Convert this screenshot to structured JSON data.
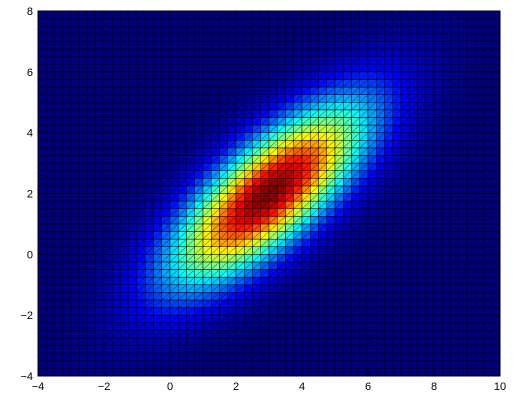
{
  "chart_data": {
    "type": "heatmap",
    "title": "",
    "xlabel": "",
    "ylabel": "",
    "xlim": [
      -4,
      10
    ],
    "ylim": [
      -4,
      8
    ],
    "x_ticks": [
      -4,
      -2,
      0,
      2,
      4,
      6,
      8,
      10
    ],
    "y_ticks": [
      -4,
      -2,
      0,
      2,
      4,
      6,
      8
    ],
    "x_tick_labels": [
      "−4",
      "−2",
      "0",
      "2",
      "4",
      "6",
      "8",
      "10"
    ],
    "y_tick_labels": [
      "−4",
      "−2",
      "0",
      "2",
      "4",
      "6",
      "8"
    ],
    "grid_spacing": 0.25,
    "surface": {
      "kind": "bivariate-gaussian",
      "mean": [
        3,
        2
      ],
      "variance_x": 4,
      "variance_y": 4,
      "correlation": 0.75,
      "peak_value": 1
    },
    "colormap": "jet",
    "edge_color": "#000000",
    "triangulated_faces": true,
    "box": true
  }
}
